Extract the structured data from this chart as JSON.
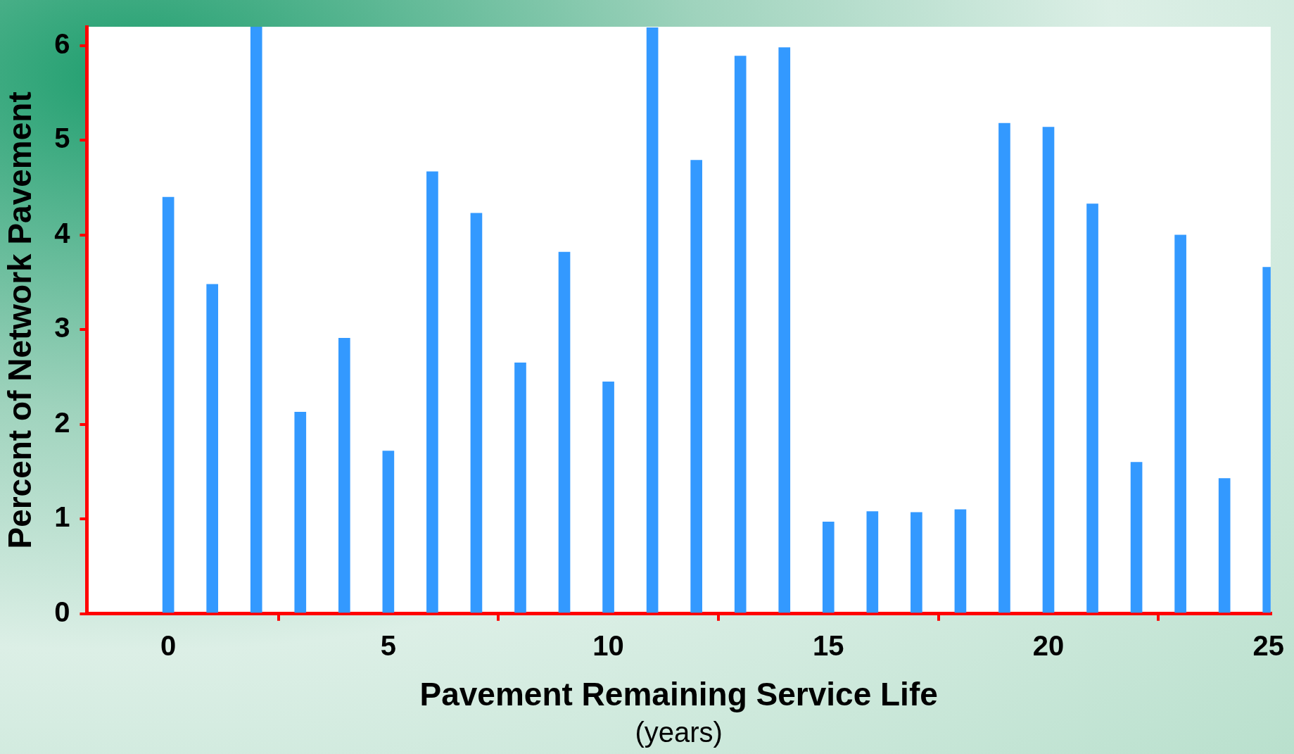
{
  "chart_data": {
    "type": "bar",
    "xlabel": "Pavement Remaining Service Life",
    "ylabel": "Percent of Network Pavement",
    "annotations": [
      "(years)"
    ],
    "x": [
      0,
      1,
      2,
      3,
      4,
      5,
      6,
      7,
      8,
      9,
      10,
      11,
      12,
      13,
      14,
      15,
      16,
      17,
      18,
      19,
      20,
      21,
      22,
      23,
      24,
      25
    ],
    "values": [
      4.4,
      3.48,
      6.2,
      2.13,
      2.91,
      1.72,
      4.67,
      4.23,
      2.65,
      3.82,
      2.45,
      6.19,
      4.79,
      5.89,
      5.98,
      0.97,
      1.08,
      1.07,
      1.1,
      5.18,
      5.14,
      4.33,
      1.6,
      4.0,
      1.43,
      3.66
    ],
    "color": "#3399ff",
    "xlim": [
      -1.85,
      25.05
    ],
    "xticks": [
      0,
      5,
      10,
      15,
      20,
      25
    ],
    "ylim": [
      0,
      6.2
    ],
    "yticks": [
      0,
      1,
      2,
      3,
      4,
      5,
      6
    ],
    "grid": false,
    "legend": false
  }
}
